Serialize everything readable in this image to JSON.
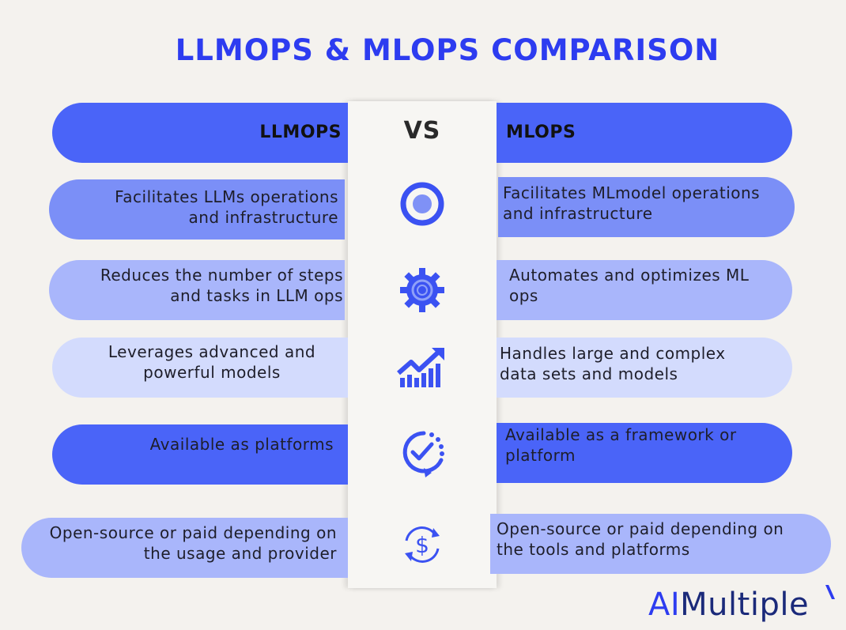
{
  "title": "LLMOPS & MLOPS COMPARISON",
  "vs": "VS",
  "left_header": "LLMOPS",
  "right_header": "MLOPS",
  "rows": [
    {
      "left": "Facilitates LLMs operations and infrastructure",
      "right": "Facilitates MLmodel operations and infrastructure",
      "icon": "target-icon"
    },
    {
      "left": "Reduces the number of steps and tasks in LLM ops",
      "right": "Automates and optimizes ML ops",
      "icon": "gear-icon"
    },
    {
      "left": "Leverages advanced and powerful models",
      "right": "Handles large and complex data sets and models",
      "icon": "growth-chart-icon"
    },
    {
      "left": "Available as platforms",
      "right": "Available as a framework or platform",
      "icon": "progress-check-icon"
    },
    {
      "left": "Open-source or paid depending on the usage and provider",
      "right": "Open-source or paid depending on the tools and platforms",
      "icon": "dollar-cycle-icon"
    }
  ],
  "logo": {
    "ai": "AI",
    "rest": "Multiple"
  },
  "colors": {
    "title": "#2d3cf0",
    "dark": "#4a64f8",
    "mid": "#7b8ff7",
    "light": "#a9b6fb",
    "pale": "#d3dbfd"
  }
}
